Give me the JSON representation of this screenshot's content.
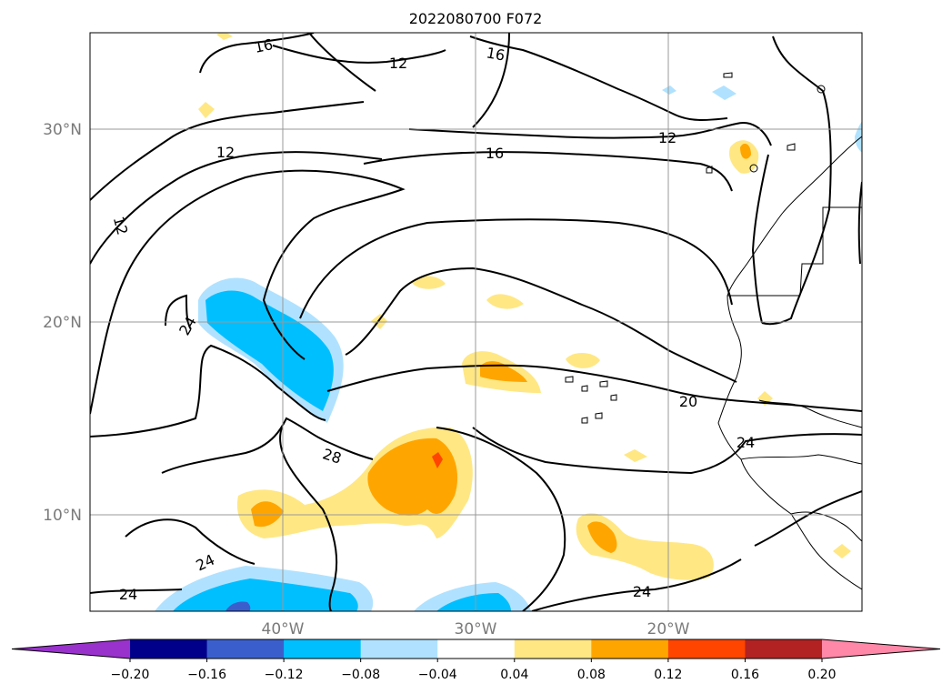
{
  "chart_data": {
    "type": "heatmap",
    "title": "2022080700 F072",
    "map": {
      "lon_range": [
        -50,
        -10
      ],
      "lat_range": [
        5,
        35
      ],
      "lon_ticks": [
        {
          "value": -40,
          "label": "40°W"
        },
        {
          "value": -30,
          "label": "30°W"
        },
        {
          "value": -20,
          "label": "20°W"
        }
      ],
      "lat_ticks": [
        {
          "value": 30,
          "label": "30°N"
        },
        {
          "value": 20,
          "label": "20°N"
        },
        {
          "value": 10,
          "label": "10°N"
        }
      ],
      "grid": true
    },
    "colorbar": {
      "levels": [
        -0.2,
        -0.16,
        -0.12,
        -0.08,
        -0.04,
        0.04,
        0.08,
        0.12,
        0.16,
        0.2
      ],
      "tick_labels": [
        "−0.20",
        "−0.16",
        "−0.12",
        "−0.08",
        "−0.04",
        "0.04",
        "0.08",
        "0.12",
        "0.16",
        "0.20"
      ],
      "colors": [
        "#9932cc",
        "#00008b",
        "#3a5fcd",
        "#00bfff",
        "#b0e2ff",
        "#ffffff",
        "#ffe784",
        "#ffa500",
        "#ff4500",
        "#b22222",
        "#ff88a8"
      ],
      "extend": "both"
    },
    "contour_labels": [
      "16",
      "12",
      "16",
      "12",
      "16",
      "12",
      "12",
      "24",
      "20",
      "24",
      "28",
      "24",
      "24",
      "24"
    ],
    "contour_levels": [
      12,
      16,
      20,
      24,
      28
    ]
  }
}
